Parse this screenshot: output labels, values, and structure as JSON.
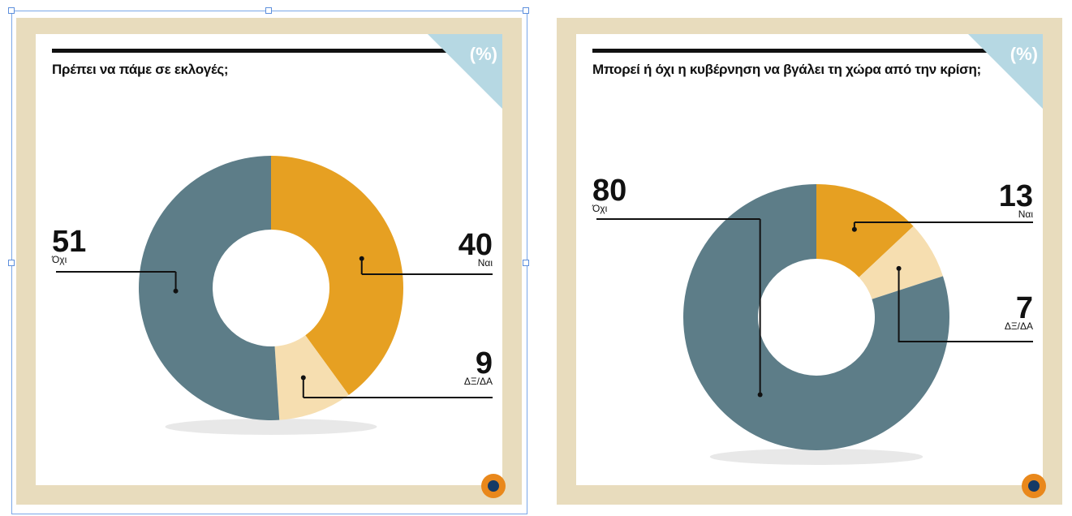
{
  "percent_badge": "(%)",
  "chart_data": [
    {
      "type": "pie",
      "title": "Πρέπει να πάμε σε εκλογές;",
      "slices": [
        {
          "label": "Ναι",
          "value": 40,
          "color": "#e6a022"
        },
        {
          "label": "ΔΞ/ΔΑ",
          "value": 9,
          "color": "#f6deb0"
        },
        {
          "label": "Όχι",
          "value": 51,
          "color": "#5d7d88"
        }
      ]
    },
    {
      "type": "pie",
      "title": "Μπορεί ή όχι η κυβέρνηση να βγάλει τη χώρα από την κρίση;",
      "slices": [
        {
          "label": "Ναι",
          "value": 13,
          "color": "#e6a022"
        },
        {
          "label": "ΔΞ/ΔΑ",
          "value": 7,
          "color": "#f6deb0"
        },
        {
          "label": "Όχι",
          "value": 80,
          "color": "#5d7d88"
        }
      ]
    }
  ],
  "colors": {
    "frame": "#e8dcbd",
    "accent_blue": "#b6d8e3",
    "logo_orange": "#e9881c",
    "logo_navy": "#153a66"
  }
}
